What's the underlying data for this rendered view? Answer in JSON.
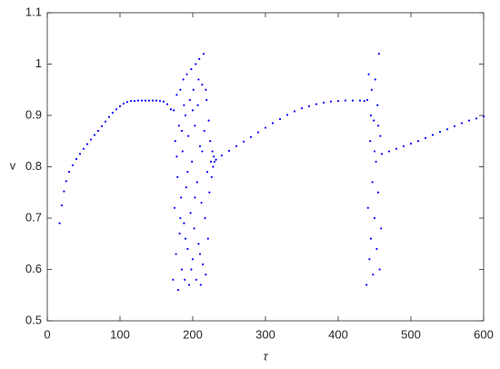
{
  "chart_data": {
    "type": "scatter",
    "xlabel": "τ",
    "ylabel": "v",
    "color": "#0000ff",
    "xlim": [
      0,
      600
    ],
    "ylim": [
      0.5,
      1.1
    ],
    "xticks": [
      0,
      100,
      200,
      300,
      400,
      500,
      600
    ],
    "yticks": [
      0.5,
      0.6,
      0.7,
      0.8,
      0.9,
      1,
      1.1
    ],
    "x": [
      17,
      20,
      23,
      26,
      30,
      35,
      40,
      45,
      50,
      55,
      60,
      65,
      70,
      75,
      80,
      85,
      90,
      95,
      100,
      105,
      110,
      115,
      120,
      125,
      130,
      135,
      140,
      145,
      150,
      155,
      160,
      165,
      170,
      173,
      174,
      175,
      176,
      177,
      178,
      179,
      180,
      181,
      182,
      183,
      184,
      185,
      186,
      187,
      188,
      189,
      190,
      191,
      192,
      193,
      194,
      195,
      196,
      197,
      198,
      199,
      200,
      201,
      202,
      203,
      204,
      205,
      206,
      207,
      208,
      209,
      210,
      211,
      212,
      213,
      214,
      215,
      216,
      217,
      218,
      219,
      220,
      221,
      222,
      223,
      224,
      225,
      226,
      227,
      228,
      229,
      230,
      178,
      183,
      188,
      193,
      198,
      203,
      208,
      213,
      218,
      210,
      200,
      190,
      185,
      232,
      240,
      250,
      260,
      270,
      280,
      290,
      300,
      310,
      320,
      330,
      340,
      350,
      360,
      370,
      380,
      390,
      400,
      410,
      420,
      430,
      436,
      439,
      440,
      441,
      442,
      443,
      444,
      445,
      446,
      447,
      448,
      449,
      450,
      451,
      452,
      453,
      454,
      455,
      456,
      457,
      458,
      459,
      445,
      450,
      455,
      460,
      470,
      480,
      490,
      500,
      510,
      520,
      530,
      540,
      550,
      560,
      570,
      580,
      590,
      600
    ],
    "values": [
      0.69,
      0.725,
      0.752,
      0.772,
      0.79,
      0.803,
      0.815,
      0.825,
      0.835,
      0.844,
      0.853,
      0.862,
      0.87,
      0.879,
      0.888,
      0.897,
      0.905,
      0.912,
      0.918,
      0.923,
      0.926,
      0.928,
      0.928,
      0.929,
      0.929,
      0.929,
      0.929,
      0.929,
      0.929,
      0.928,
      0.927,
      0.922,
      0.912,
      0.58,
      0.91,
      0.72,
      0.85,
      0.63,
      0.94,
      0.78,
      0.56,
      0.88,
      0.67,
      0.95,
      0.74,
      0.6,
      0.83,
      0.97,
      0.69,
      0.58,
      0.9,
      0.76,
      0.98,
      0.64,
      0.86,
      0.57,
      0.93,
      0.71,
      0.99,
      0.81,
      0.62,
      0.95,
      0.68,
      0.88,
      1.0,
      0.58,
      0.77,
      0.92,
      0.65,
      1.01,
      0.84,
      0.57,
      0.73,
      0.96,
      0.61,
      1.02,
      0.87,
      0.7,
      0.59,
      0.93,
      0.79,
      0.66,
      0.89,
      0.75,
      0.85,
      0.81,
      0.78,
      0.83,
      0.8,
      0.82,
      0.81,
      0.82,
      0.7,
      0.92,
      0.79,
      0.6,
      0.74,
      0.97,
      0.83,
      0.95,
      0.63,
      0.91,
      0.66,
      0.87,
      0.814,
      0.822,
      0.831,
      0.84,
      0.849,
      0.858,
      0.867,
      0.876,
      0.885,
      0.893,
      0.901,
      0.908,
      0.914,
      0.918,
      0.922,
      0.925,
      0.927,
      0.928,
      0.929,
      0.929,
      0.929,
      0.928,
      0.57,
      0.93,
      0.72,
      0.98,
      0.62,
      0.85,
      0.66,
      0.95,
      0.77,
      0.59,
      0.89,
      0.7,
      0.97,
      0.81,
      0.64,
      0.92,
      0.75,
      1.02,
      0.6,
      0.86,
      0.68,
      0.9,
      0.83,
      0.88,
      0.825,
      0.83,
      0.835,
      0.84,
      0.845,
      0.85,
      0.856,
      0.862,
      0.868,
      0.873,
      0.879,
      0.885,
      0.89,
      0.894,
      0.898
    ]
  }
}
